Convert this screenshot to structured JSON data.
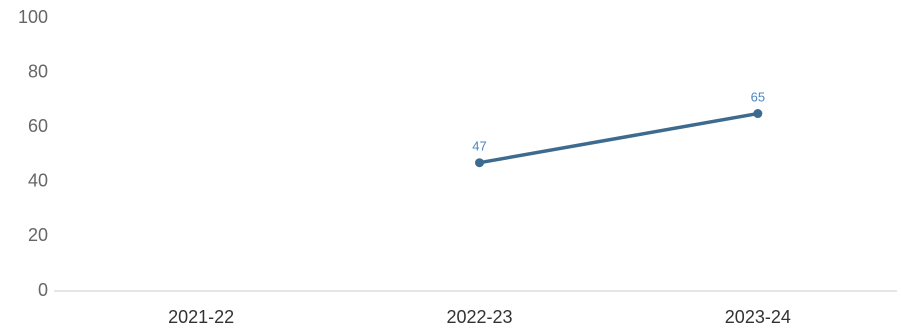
{
  "chart_data": {
    "type": "line",
    "title": "",
    "xlabel": "",
    "ylabel": "",
    "categories": [
      "2021-22",
      "2022-23",
      "2023-24"
    ],
    "series": [
      {
        "values": [
          null,
          47,
          65
        ],
        "color": "#3d6a8f",
        "label_color": "#4a86c5"
      }
    ],
    "y_ticks": [
      "0",
      "20",
      "40",
      "60",
      "80",
      "100"
    ],
    "ylim": [
      0,
      100
    ],
    "grid": false,
    "legend": "none",
    "axis_color": "#cccccc"
  }
}
